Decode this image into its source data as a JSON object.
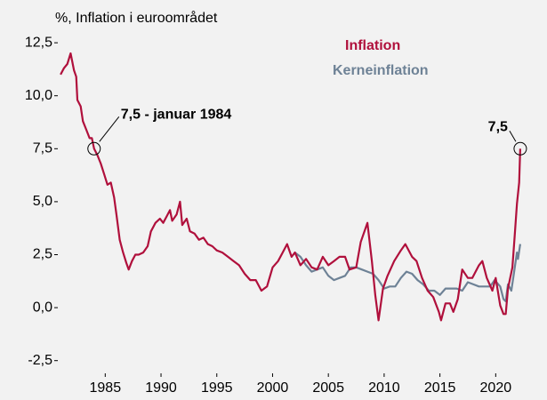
{
  "chart_data": {
    "type": "line",
    "title": "%, Inflation i euroområdet",
    "xlim": [
      1980.75,
      2023.8
    ],
    "xticks": [
      1985,
      1990,
      1995,
      2000,
      2005,
      2010,
      2015,
      2020
    ],
    "ylim": [
      -3.1,
      13.05
    ],
    "yticks": [
      {
        "value": -2.5,
        "label": "-2,5"
      },
      {
        "value": 0,
        "label": "0,0"
      },
      {
        "value": 2.5,
        "label": "2,5"
      },
      {
        "value": 5,
        "label": "5,0"
      },
      {
        "value": 7.5,
        "label": "7,5"
      },
      {
        "value": 10,
        "label": "10,0"
      },
      {
        "value": 12.5,
        "label": "12,5"
      }
    ],
    "grid": false,
    "series": [
      {
        "name": "Inflation",
        "color": "#b0103c",
        "x": [
          1981.0,
          1981.3,
          1981.6,
          1981.9,
          1982.2,
          1982.4,
          1982.5,
          1982.8,
          1983.0,
          1983.3,
          1983.6,
          1983.8,
          1984.0,
          1984.3,
          1984.6,
          1984.9,
          1985.2,
          1985.5,
          1985.8,
          1986.0,
          1986.3,
          1986.6,
          1986.9,
          1987.1,
          1987.4,
          1987.7,
          1988.0,
          1988.4,
          1988.8,
          1989.1,
          1989.5,
          1989.9,
          1990.2,
          1990.5,
          1990.8,
          1991.0,
          1991.4,
          1991.7,
          1991.9,
          1992.3,
          1992.6,
          1993.0,
          1993.4,
          1993.8,
          1994.2,
          1994.6,
          1995.0,
          1995.5,
          1996.0,
          1996.5,
          1997.0,
          1997.5,
          1998.0,
          1998.5,
          1999.0,
          1999.5,
          2000.0,
          2000.5,
          2000.9,
          2001.3,
          2001.7,
          2002.0,
          2002.5,
          2003.0,
          2003.5,
          2004.0,
          2004.5,
          2005.0,
          2005.5,
          2006.0,
          2006.5,
          2006.9,
          2007.5,
          2007.9,
          2008.5,
          2008.9,
          2009.2,
          2009.5,
          2009.9,
          2010.3,
          2010.9,
          2011.5,
          2011.9,
          2012.5,
          2012.9,
          2013.4,
          2013.9,
          2014.4,
          2014.9,
          2015.1,
          2015.5,
          2015.9,
          2016.2,
          2016.6,
          2017.0,
          2017.5,
          2017.9,
          2018.5,
          2018.8,
          2019.2,
          2019.7,
          2020.0,
          2020.4,
          2020.7,
          2020.9,
          2021.1,
          2021.5,
          2021.7,
          2021.9,
          2022.1,
          2022.2
        ],
        "values": [
          11.0,
          11.3,
          11.5,
          12.0,
          11.2,
          10.9,
          9.8,
          9.5,
          8.8,
          8.4,
          8.0,
          8.0,
          7.5,
          7.2,
          6.8,
          6.3,
          5.8,
          5.9,
          5.2,
          4.4,
          3.2,
          2.6,
          2.1,
          1.8,
          2.2,
          2.5,
          2.5,
          2.6,
          2.9,
          3.6,
          4.0,
          4.2,
          4.0,
          4.3,
          4.6,
          4.1,
          4.4,
          5.0,
          3.9,
          4.2,
          3.6,
          3.5,
          3.2,
          3.3,
          3.0,
          2.9,
          2.7,
          2.6,
          2.4,
          2.2,
          2.0,
          1.6,
          1.3,
          1.3,
          0.8,
          1.0,
          1.9,
          2.2,
          2.6,
          3.0,
          2.4,
          2.6,
          2.0,
          2.3,
          1.9,
          1.8,
          2.4,
          2.0,
          2.2,
          2.4,
          2.4,
          1.8,
          1.9,
          3.1,
          4.0,
          2.2,
          0.6,
          -0.6,
          0.9,
          1.5,
          2.2,
          2.7,
          3.0,
          2.4,
          2.2,
          1.4,
          0.8,
          0.5,
          -0.2,
          -0.6,
          0.2,
          0.2,
          -0.2,
          0.4,
          1.8,
          1.4,
          1.4,
          2.0,
          2.2,
          1.4,
          0.8,
          1.4,
          0.1,
          -0.3,
          -0.3,
          0.9,
          1.9,
          3.4,
          4.9,
          5.9,
          7.5
        ]
      },
      {
        "name": "Kerneinflation",
        "color": "#6e8296",
        "x": [
          2002.0,
          2002.5,
          2003.0,
          2003.5,
          2004.0,
          2004.5,
          2005.0,
          2005.5,
          2006.0,
          2006.5,
          2007.0,
          2007.5,
          2008.0,
          2008.5,
          2009.0,
          2009.5,
          2010.0,
          2010.5,
          2011.0,
          2011.5,
          2012.0,
          2012.5,
          2013.0,
          2013.5,
          2014.0,
          2014.5,
          2015.0,
          2015.5,
          2016.0,
          2016.5,
          2017.0,
          2017.5,
          2018.0,
          2018.5,
          2019.0,
          2019.5,
          2019.9,
          2020.4,
          2020.7,
          2020.9,
          2021.1,
          2021.4,
          2021.6,
          2021.9,
          2022.0,
          2022.2
        ],
        "values": [
          2.6,
          2.4,
          2.0,
          1.7,
          1.8,
          1.9,
          1.5,
          1.3,
          1.4,
          1.5,
          1.9,
          1.9,
          1.8,
          1.7,
          1.6,
          1.3,
          0.9,
          1.0,
          1.0,
          1.4,
          1.7,
          1.6,
          1.3,
          1.1,
          0.8,
          0.8,
          0.6,
          0.9,
          0.9,
          0.9,
          0.8,
          1.2,
          1.1,
          1.0,
          1.0,
          1.0,
          1.3,
          1.0,
          0.4,
          0.3,
          1.1,
          0.8,
          1.5,
          2.6,
          2.3,
          3.0
        ]
      }
    ],
    "annotations": [
      {
        "text": "7,5 - januar 1984",
        "x": 1984.0,
        "y": 7.5
      },
      {
        "text": "7,5",
        "x": 2022.2,
        "y": 7.5
      }
    ]
  }
}
